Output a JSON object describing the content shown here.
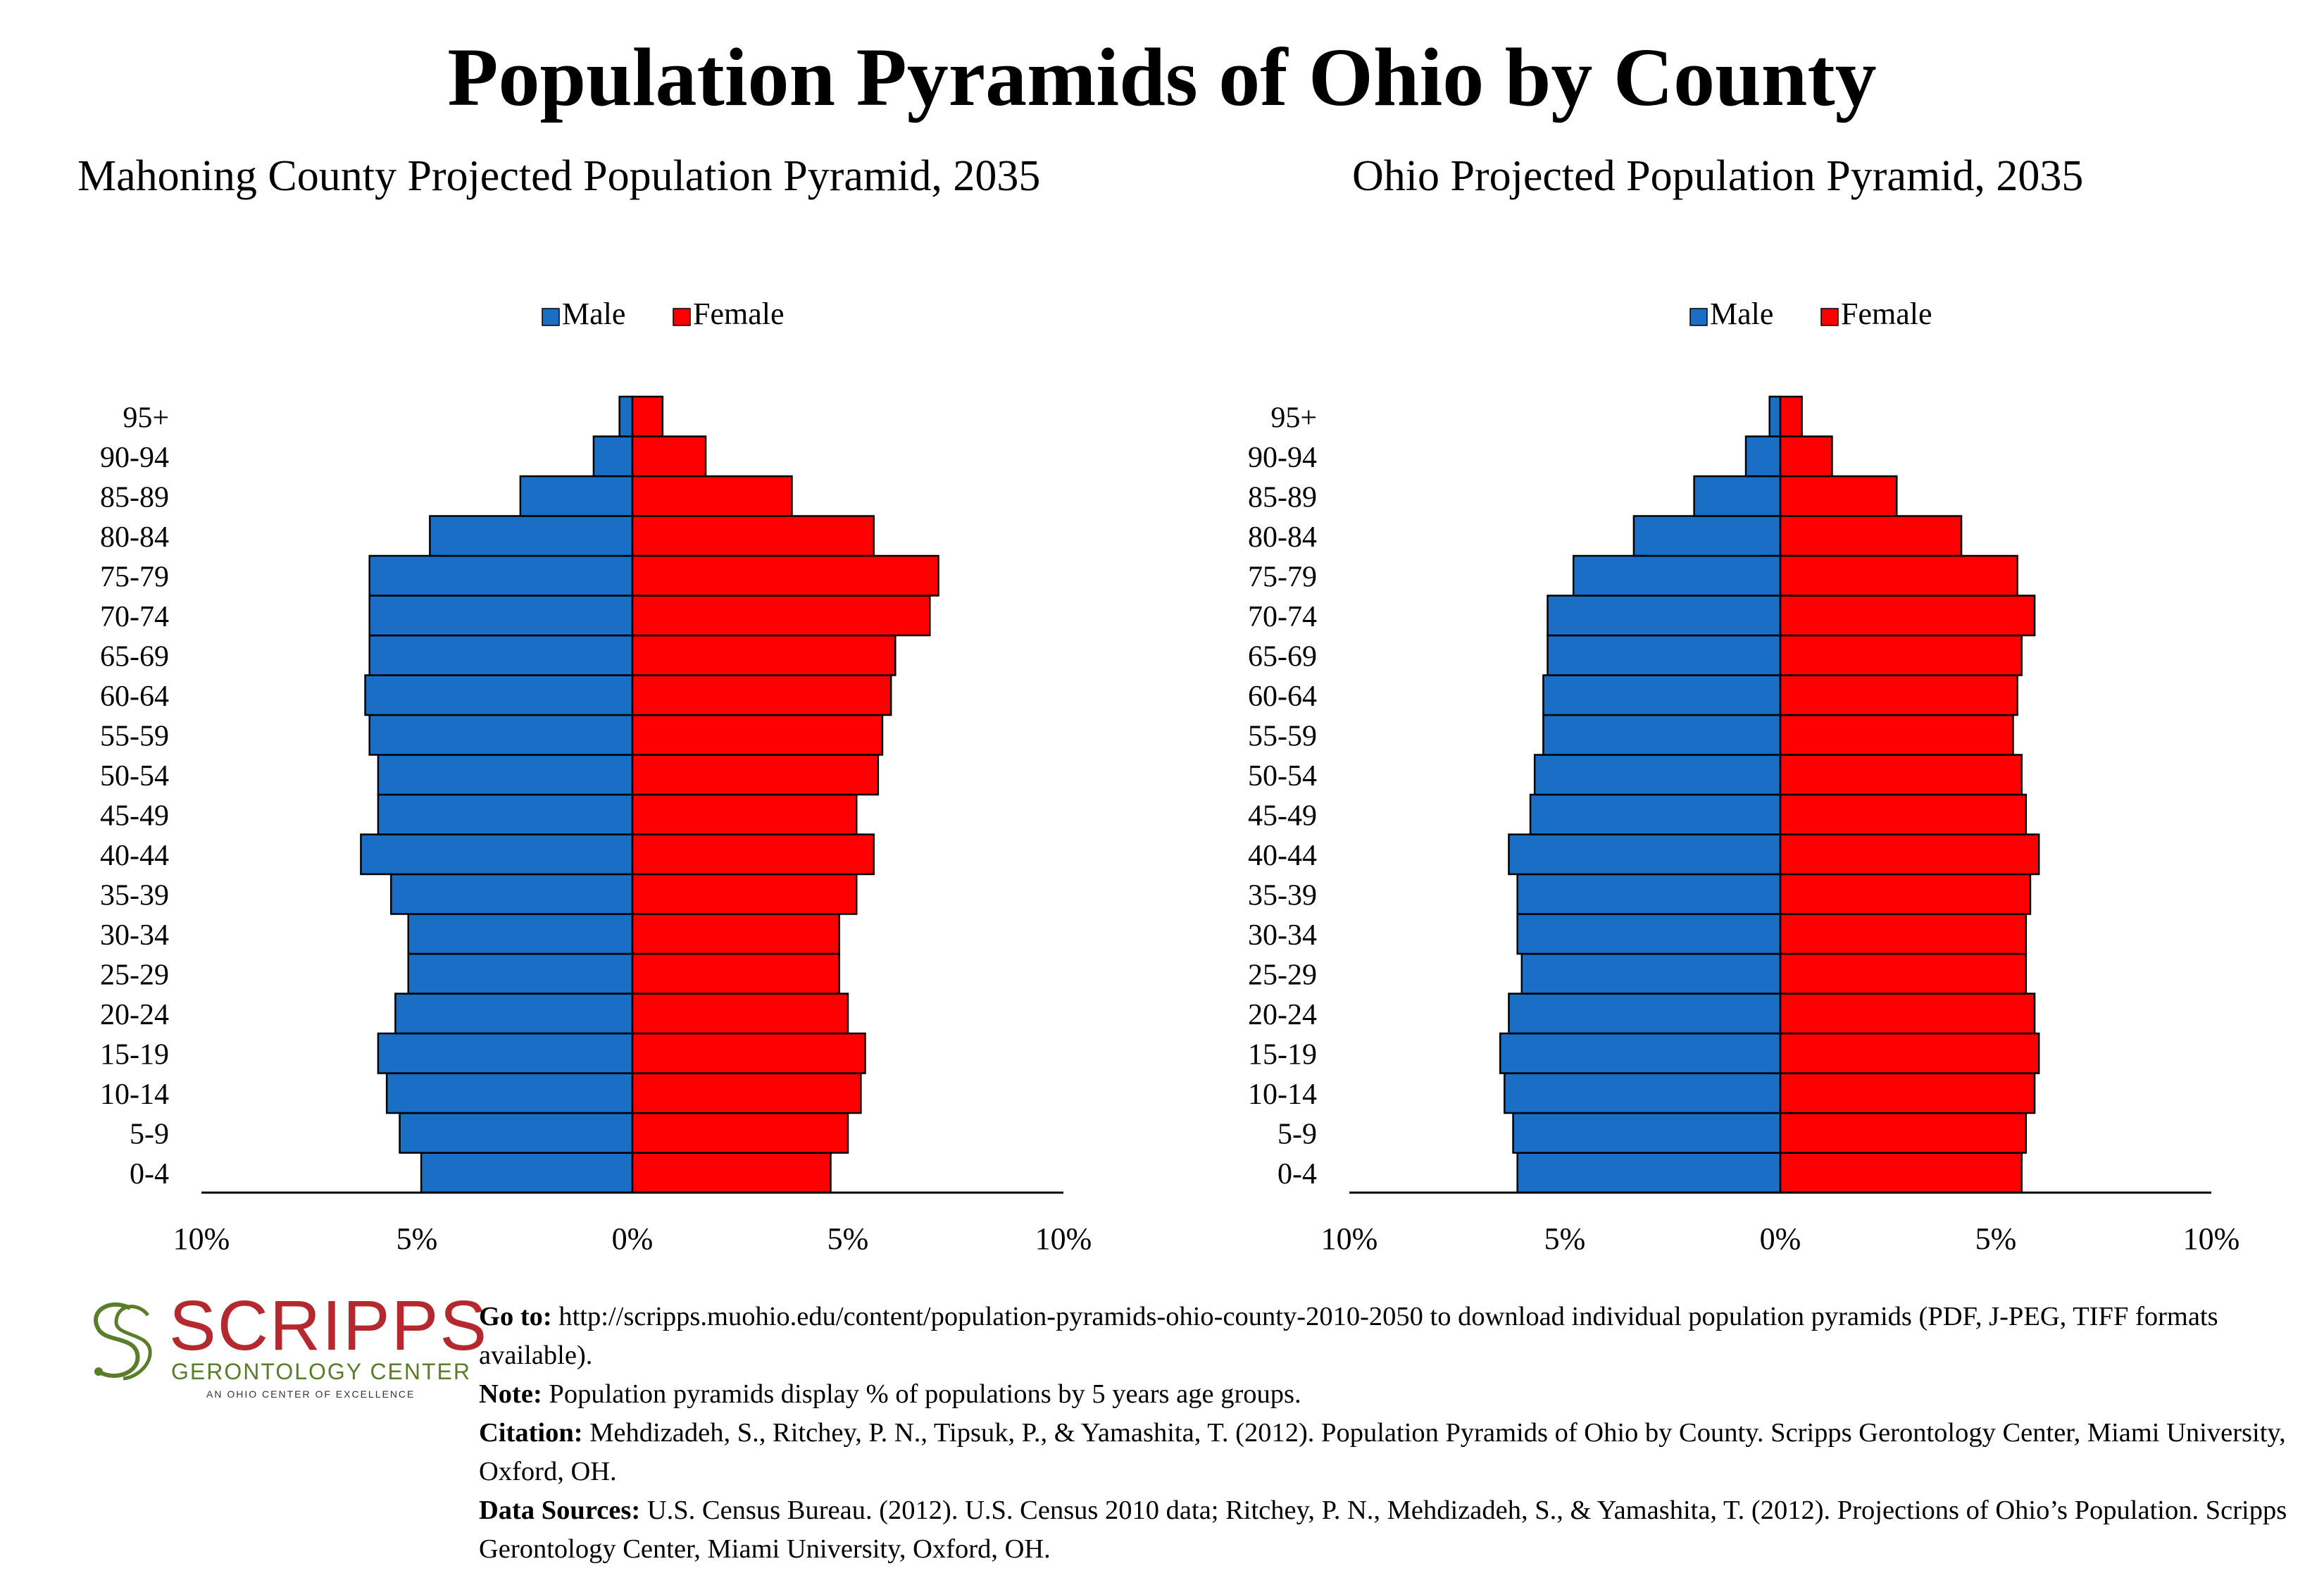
{
  "header": {
    "title": "Population Pyramids of Ohio by County",
    "left_subtitle": "Mahoning County Projected Population Pyramid, 2035",
    "right_subtitle": "Ohio Projected Population Pyramid, 2035"
  },
  "colors": {
    "male": "#1a6fc4",
    "female": "#ff0000"
  },
  "chart_data": [
    {
      "type": "bar",
      "orientation": "horizontal-pyramid",
      "title": "Mahoning County Projected Population Pyramid, 2035",
      "legend": {
        "placement": "top-center",
        "entries": [
          "Male",
          "Female"
        ]
      },
      "categories": [
        "0-4",
        "5-9",
        "10-14",
        "15-19",
        "20-24",
        "25-29",
        "30-34",
        "35-39",
        "40-44",
        "45-49",
        "50-54",
        "55-59",
        "60-64",
        "65-69",
        "70-74",
        "75-79",
        "80-84",
        "85-89",
        "90-94",
        "95+"
      ],
      "series": [
        {
          "name": "Male",
          "values": [
            4.9,
            5.4,
            5.7,
            5.9,
            5.5,
            5.2,
            5.2,
            5.6,
            6.3,
            5.9,
            5.9,
            6.1,
            6.2,
            6.1,
            6.1,
            6.1,
            4.7,
            2.6,
            0.9,
            0.3
          ]
        },
        {
          "name": "Female",
          "values": [
            4.6,
            5.0,
            5.3,
            5.4,
            5.0,
            4.8,
            4.8,
            5.2,
            5.6,
            5.2,
            5.7,
            5.8,
            6.0,
            6.1,
            6.9,
            7.1,
            5.6,
            3.7,
            1.7,
            0.7
          ]
        }
      ],
      "xlim": [
        -10,
        10
      ],
      "xticks": [
        "10%",
        "5%",
        "0%",
        "5%",
        "10%"
      ],
      "grid": false
    },
    {
      "type": "bar",
      "orientation": "horizontal-pyramid",
      "title": "Ohio Projected Population Pyramid, 2035",
      "legend": {
        "placement": "top-center",
        "entries": [
          "Male",
          "Female"
        ]
      },
      "categories": [
        "0-4",
        "5-9",
        "10-14",
        "15-19",
        "20-24",
        "25-29",
        "30-34",
        "35-39",
        "40-44",
        "45-49",
        "50-54",
        "55-59",
        "60-64",
        "65-69",
        "70-74",
        "75-79",
        "80-84",
        "85-89",
        "90-94",
        "95+"
      ],
      "series": [
        {
          "name": "Male",
          "values": [
            6.1,
            6.2,
            6.4,
            6.5,
            6.3,
            6.0,
            6.1,
            6.1,
            6.3,
            5.8,
            5.7,
            5.5,
            5.5,
            5.4,
            5.4,
            4.8,
            3.4,
            2.0,
            0.8,
            0.25
          ]
        },
        {
          "name": "Female",
          "values": [
            5.6,
            5.7,
            5.9,
            6.0,
            5.9,
            5.7,
            5.7,
            5.8,
            6.0,
            5.7,
            5.6,
            5.4,
            5.5,
            5.6,
            5.9,
            5.5,
            4.2,
            2.7,
            1.2,
            0.5
          ]
        }
      ],
      "xlim": [
        -10,
        10
      ],
      "xticks": [
        "10%",
        "5%",
        "0%",
        "5%",
        "10%"
      ],
      "grid": false
    }
  ],
  "logo": {
    "wordmark": "SCRIPPS",
    "line1": "GERONTOLOGY CENTER",
    "line2": "AN OHIO CENTER OF EXCELLENCE"
  },
  "footer": {
    "goto_label": "Go to:",
    "goto_text": " http://scripps.muohio.edu/content/population-pyramids-ohio-county-2010-2050 to download individual population pyramids (PDF, J-PEG, TIFF formats available).",
    "note_label": "Note:",
    "note_text": " Population pyramids display % of populations by 5 years age groups.",
    "citation_label": "Citation:",
    "citation_text": " Mehdizadeh, S., Ritchey, P. N., Tipsuk, P., & Yamashita, T. (2012). Population Pyramids of Ohio by County. Scripps Gerontology Center, Miami University, Oxford, OH.",
    "sources_label": "Data Sources:",
    "sources_text": " U.S. Census Bureau. (2012). U.S. Census 2010 data; Ritchey, P. N., Mehdizadeh, S., & Yamashita, T. (2012). Projections of Ohio’s Population. Scripps Gerontology Center, Miami University, Oxford, OH."
  }
}
